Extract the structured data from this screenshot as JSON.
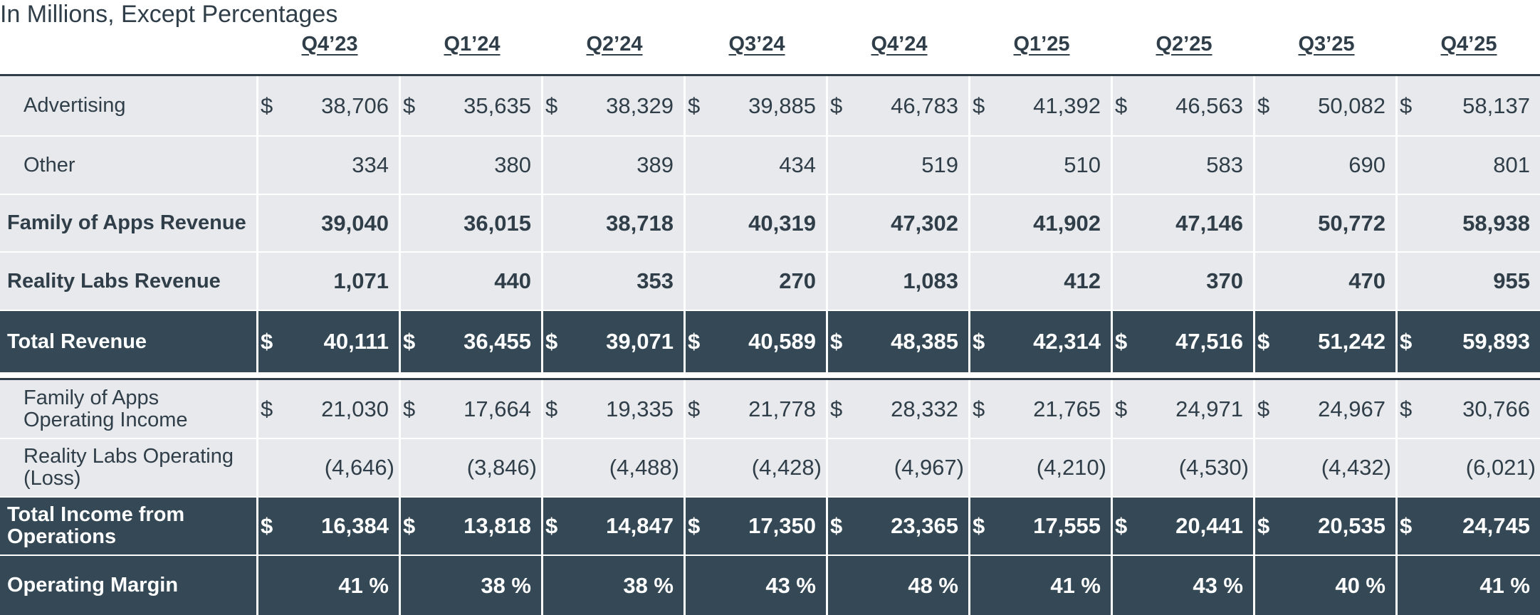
{
  "subtitle": "In Millions, Except Percentages",
  "quarters": [
    "Q4’23",
    "Q1’24",
    "Q2’24",
    "Q3’24",
    "Q4’24",
    "Q1’25",
    "Q2’25",
    "Q3’25",
    "Q4’25"
  ],
  "rows": [
    {
      "label": "Advertising",
      "style": "light",
      "label_style": "indent",
      "bold": false,
      "dollar": true,
      "values": [
        "38,706",
        "35,635",
        "38,329",
        "39,885",
        "46,783",
        "41,392",
        "46,563",
        "50,082",
        "58,137"
      ]
    },
    {
      "label": "Other",
      "style": "light",
      "label_style": "indent",
      "bold": false,
      "dollar": false,
      "values": [
        "334",
        "380",
        "389",
        "434",
        "519",
        "510",
        "583",
        "690",
        "801"
      ]
    },
    {
      "label": "Family of Apps Revenue",
      "style": "light",
      "label_style": "bold",
      "bold": true,
      "dollar": false,
      "values": [
        "39,040",
        "36,015",
        "38,718",
        "40,319",
        "47,302",
        "41,902",
        "47,146",
        "50,772",
        "58,938"
      ]
    },
    {
      "label": "Reality Labs Revenue",
      "style": "light",
      "label_style": "bold",
      "bold": true,
      "dollar": false,
      "values": [
        "1,071",
        "440",
        "353",
        "270",
        "1,083",
        "412",
        "370",
        "470",
        "955"
      ]
    },
    {
      "label": "Total Revenue",
      "style": "dark",
      "label_style": "bold",
      "bold": true,
      "dollar": true,
      "values": [
        "40,111",
        "36,455",
        "39,071",
        "40,589",
        "48,385",
        "42,314",
        "47,516",
        "51,242",
        "59,893"
      ]
    },
    {
      "label": "Family of Apps Operating Income",
      "style": "light",
      "label_style": "indent",
      "bold": false,
      "dollar": true,
      "values": [
        "21,030",
        "17,664",
        "19,335",
        "21,778",
        "28,332",
        "21,765",
        "24,971",
        "24,967",
        "30,766"
      ]
    },
    {
      "label": "Reality Labs Operating (Loss)",
      "style": "light",
      "label_style": "indent",
      "bold": false,
      "dollar": false,
      "paren": true,
      "values": [
        "(4,646)",
        "(3,846)",
        "(4,488)",
        "(4,428)",
        "(4,967)",
        "(4,210)",
        "(4,530)",
        "(4,432)",
        "(6,021)"
      ]
    },
    {
      "label": "Total Income from Operations",
      "style": "dark",
      "label_style": "bold",
      "bold": true,
      "dollar": true,
      "values": [
        "16,384",
        "13,818",
        "14,847",
        "17,350",
        "23,365",
        "17,555",
        "20,441",
        "20,535",
        "24,745"
      ]
    },
    {
      "label": "Operating Margin",
      "style": "dark",
      "label_style": "bold",
      "bold": true,
      "dollar": false,
      "values": [
        "41 %",
        "38 %",
        "38 %",
        "43 %",
        "48 %",
        "41 %",
        "43 %",
        "40 %",
        "41 %"
      ]
    }
  ],
  "currency_symbol": "$",
  "colors": {
    "dark_row": "#344955",
    "light_row": "#e8e9ec",
    "text": "#2f3e48"
  }
}
